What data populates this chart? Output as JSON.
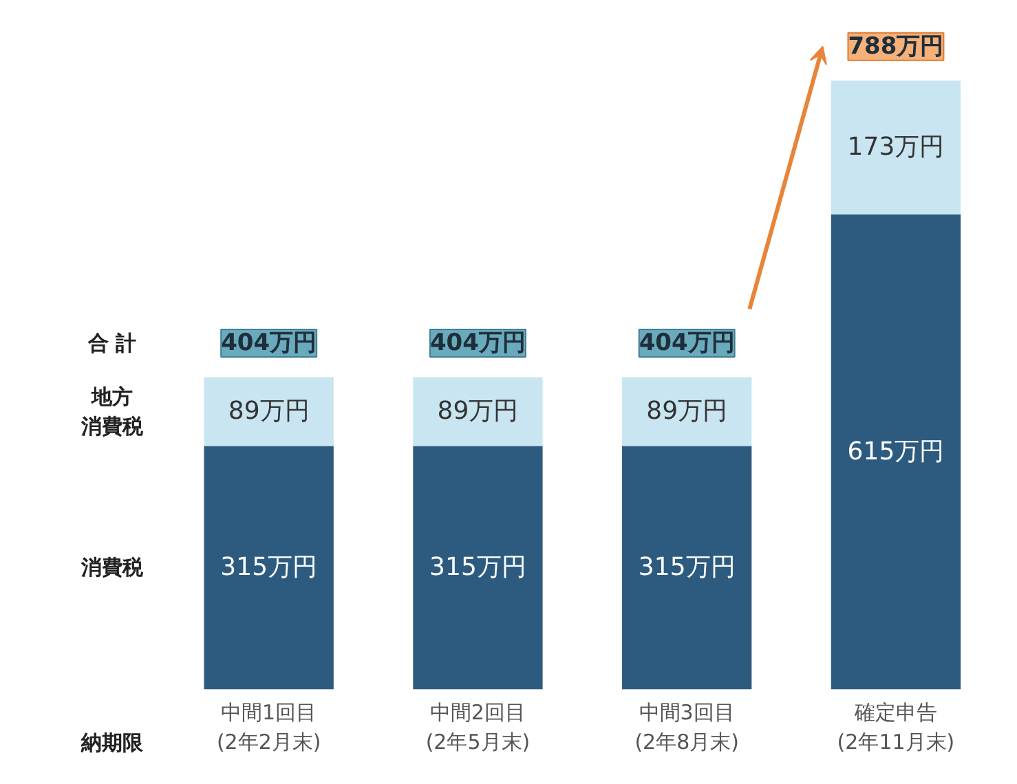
{
  "chart_data": {
    "type": "bar",
    "stacked": true,
    "categories": [
      "中間1回目\n(2年2月末)",
      "中間2回目\n(2年5月末)",
      "中間3回目\n(2年8月末)",
      "確定申告\n(2年11月末)"
    ],
    "series": [
      {
        "name": "消費税",
        "color": "#2d5b7f",
        "values": [
          315,
          315,
          315,
          615
        ],
        "value_labels": [
          "315万円",
          "315万円",
          "315万円",
          "615万円"
        ]
      },
      {
        "name": "地方消費税",
        "color": "#c8e5f1",
        "values": [
          89,
          89,
          89,
          173
        ],
        "value_labels": [
          "89万円",
          "89万円",
          "89万円",
          "173万円"
        ]
      }
    ],
    "totals": [
      "404万円",
      "404万円",
      "404万円",
      "788万円"
    ],
    "annotations": [
      "合 計",
      "納期限"
    ]
  }
}
